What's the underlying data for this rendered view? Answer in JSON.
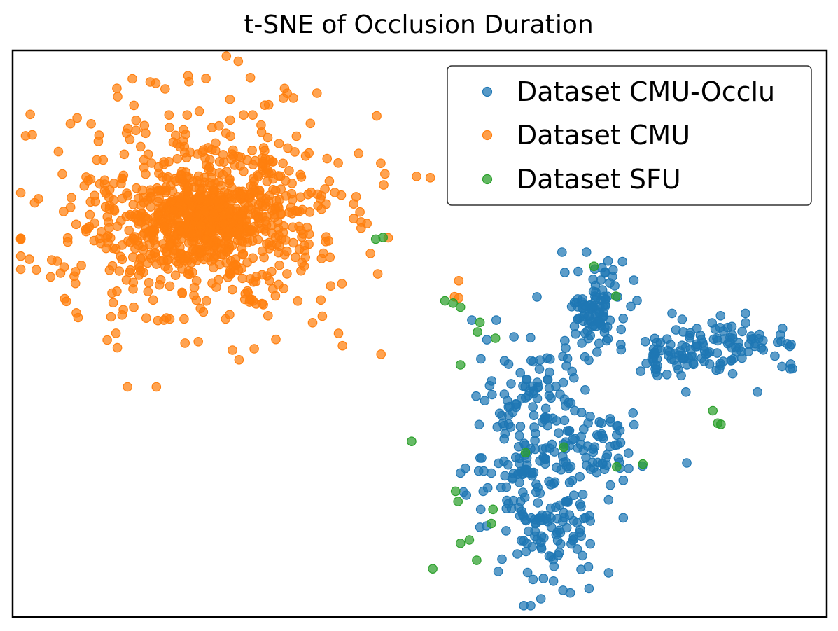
{
  "chart_data": {
    "type": "scatter",
    "title": "t-SNE of Occlusion Duration",
    "xlabel": "",
    "ylabel": "",
    "xlim": [
      0,
      100
    ],
    "ylim": [
      0,
      100
    ],
    "grid": false,
    "ticks": false,
    "legend_position": "top-right",
    "series": [
      {
        "name": "Dataset CMU-Occlu",
        "color": "#1f77b4",
        "points": [
          [
            56.4,
            52.4
          ],
          [
            59.4,
            52.4
          ],
          [
            71.5,
            61.4
          ],
          [
            74.3,
            56.5
          ],
          [
            71.1,
            54.6
          ],
          [
            64.4,
            56.5
          ],
          [
            74.7,
            48.1
          ],
          [
            69.0,
            51.3
          ],
          [
            58.8,
            25.4
          ],
          [
            70.3,
            45.9
          ],
          [
            77.7,
            48.6
          ],
          [
            63.8,
            24.9
          ],
          [
            61.8,
            37.6
          ],
          [
            82.7,
            39.7
          ],
          [
            76.2,
            36.0
          ],
          [
            94.5,
            44.2
          ],
          [
            91.5,
            39.7
          ],
          [
            81.0,
            53.6
          ],
          [
            75.0,
            17.5
          ],
          [
            70.1,
            29.4
          ],
          [
            65.2,
            6.8
          ],
          [
            70.8,
            5.0
          ],
          [
            60.1,
            10.2
          ],
          [
            82.8,
            27.2
          ],
          [
            57.5,
            19.0
          ],
          [
            68.8,
            31.3
          ],
          [
            78.8,
            46.3
          ]
        ],
        "clusters": [
          {
            "cx": 71.5,
            "cy": 54.4,
            "rx": 2.6,
            "ry": 5.0,
            "n": 95
          },
          {
            "cx": 81.5,
            "cy": 46.3,
            "rx": 4.0,
            "ry": 3.0,
            "n": 60
          },
          {
            "cx": 89.0,
            "cy": 48.4,
            "rx": 5.0,
            "ry": 2.6,
            "n": 70
          },
          {
            "cx": 64.6,
            "cy": 39.0,
            "rx": 4.5,
            "ry": 7.0,
            "n": 85
          },
          {
            "cx": 63.6,
            "cy": 22.0,
            "rx": 4.8,
            "ry": 10.0,
            "n": 140
          },
          {
            "cx": 71.5,
            "cy": 29.5,
            "rx": 3.5,
            "ry": 5.0,
            "n": 60
          },
          {
            "cx": 68.0,
            "cy": 15.0,
            "rx": 3.2,
            "ry": 6.0,
            "n": 45
          }
        ]
      },
      {
        "name": "Dataset CMU",
        "color": "#ff7f0e",
        "points": [
          [
            29.2,
            95.2
          ],
          [
            2.7,
            73.1
          ],
          [
            22.8,
            48.6
          ],
          [
            27.0,
            47.1
          ],
          [
            12.8,
            57.5
          ],
          [
            12.8,
            93.3
          ],
          [
            14.7,
            95.0
          ],
          [
            42.5,
            81.8
          ],
          [
            38.5,
            67.1
          ]
        ],
        "clusters": [
          {
            "cx": 23.8,
            "cy": 70.6,
            "rx": 4.3,
            "ry": 4.0,
            "n": 300
          },
          {
            "cx": 23.8,
            "cy": 70.6,
            "rx": 9.5,
            "ry": 9.0,
            "n": 450
          },
          {
            "cx": 23.8,
            "cy": 70.6,
            "rx": 15.5,
            "ry": 15.0,
            "n": 320
          }
        ]
      },
      {
        "name": "Dataset SFU",
        "color": "#2ca02c",
        "points": [
          [
            44.6,
            66.7
          ],
          [
            45.5,
            67.0
          ],
          [
            53.1,
            55.8
          ],
          [
            54.1,
            55.4
          ],
          [
            55.0,
            54.7
          ],
          [
            57.1,
            50.3
          ],
          [
            57.4,
            52.0
          ],
          [
            59.3,
            49.2
          ],
          [
            71.4,
            61.9
          ],
          [
            74.1,
            56.6
          ],
          [
            55.0,
            44.5
          ],
          [
            49.0,
            31.0
          ],
          [
            63.0,
            29.0
          ],
          [
            67.7,
            30.0
          ],
          [
            74.2,
            26.5
          ],
          [
            77.4,
            27.0
          ],
          [
            54.4,
            22.2
          ],
          [
            54.7,
            20.4
          ],
          [
            59.0,
            19.0
          ],
          [
            58.8,
            16.5
          ],
          [
            55.0,
            13.0
          ],
          [
            56.1,
            13.6
          ],
          [
            57.0,
            10.0
          ],
          [
            51.6,
            8.5
          ],
          [
            86.0,
            36.4
          ],
          [
            86.6,
            34.2
          ],
          [
            87.0,
            34.0
          ]
        ],
        "clusters": []
      }
    ]
  }
}
